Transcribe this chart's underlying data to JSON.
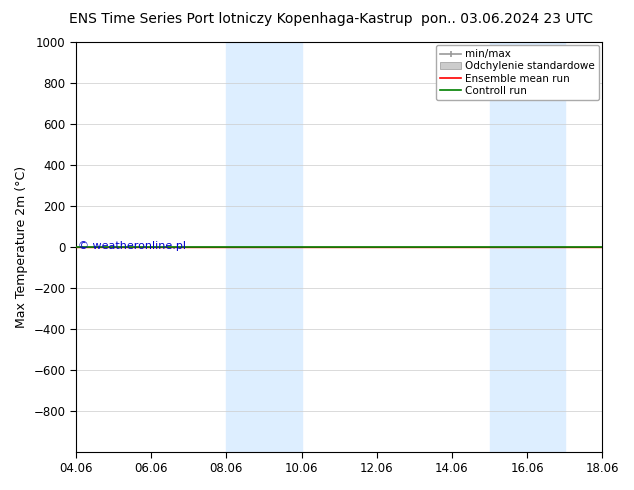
{
  "title_left": "ENS Time Series Port lotniczy Kopenhaga-Kastrup",
  "title_right": "pon.. 03.06.2024 23 UTC",
  "ylabel": "Max Temperature 2m (°C)",
  "ylim_top": -1000,
  "ylim_bottom": 1000,
  "yticks": [
    -800,
    -600,
    -400,
    -200,
    0,
    200,
    400,
    600,
    800,
    1000
  ],
  "xlim_start": 0,
  "xlim_end": 14,
  "xtick_positions": [
    0,
    2,
    4,
    6,
    8,
    10,
    12,
    14
  ],
  "xtick_labels": [
    "04.06",
    "06.06",
    "08.06",
    "10.06",
    "12.06",
    "14.06",
    "16.06",
    "18.06"
  ],
  "blue_shades": [
    {
      "x_start": 4.0,
      "x_end": 5.0
    },
    {
      "x_start": 5.0,
      "x_end": 6.0
    },
    {
      "x_start": 11.0,
      "x_end": 12.0
    },
    {
      "x_start": 12.0,
      "x_end": 13.0
    }
  ],
  "control_run_y": 0,
  "control_run_color": "#008000",
  "ensemble_mean_color": "#ff0000",
  "min_max_color": "#999999",
  "std_dev_color": "#cccccc",
  "blue_shade_color": "#ddeeff",
  "copyright_text": "© weatheronline.pl",
  "copyright_color": "#0000cc",
  "background_color": "#ffffff",
  "legend_entries": [
    "min/max",
    "Odchylenie standardowe",
    "Ensemble mean run",
    "Controll run"
  ],
  "legend_line_colors": [
    "#999999",
    "#cccccc",
    "#ff0000",
    "#008000"
  ],
  "title_fontsize": 10,
  "axis_fontsize": 9,
  "tick_fontsize": 8.5
}
